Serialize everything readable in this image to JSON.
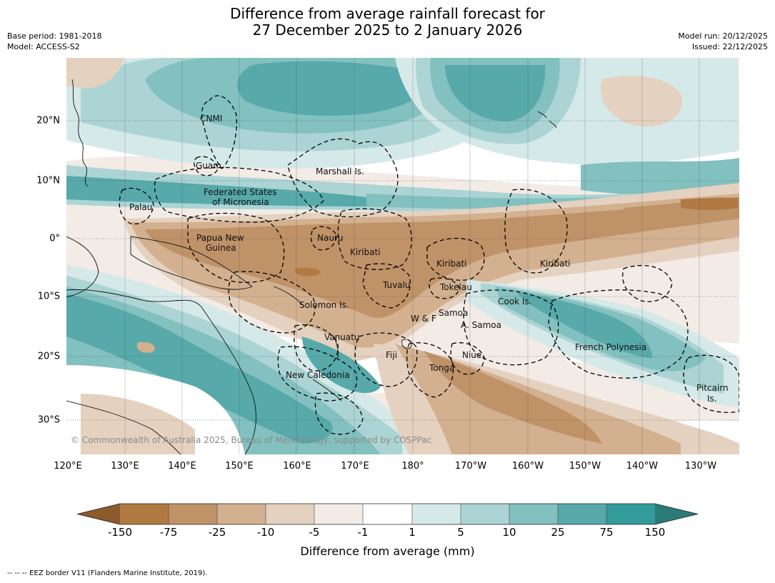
{
  "header": {
    "title_line1": "Difference from average rainfall forecast for",
    "title_line2": "27 December 2025 to 2 January 2026",
    "base_period": "Base period: 1981-2018",
    "model": "Model: ACCESS-S2",
    "model_run": "Model run: 20/12/2025",
    "issued": "Issued: 22/12/2025"
  },
  "axes": {
    "lat_labels": [
      "20°N",
      "10°N",
      "0°",
      "10°S",
      "20°S",
      "30°S"
    ],
    "lon_labels": [
      "120°E",
      "130°E",
      "140°E",
      "150°E",
      "160°E",
      "170°E",
      "180°",
      "170°W",
      "160°W",
      "150°W",
      "140°W",
      "130°W"
    ]
  },
  "places": {
    "cnmi": "CNMI",
    "guam": "Guam",
    "marshall": "Marshall Is.",
    "fsm_1": "Federated States",
    "fsm_2": "of Micronesia",
    "palau": "Palau",
    "png_1": "Papua New",
    "png_2": "Guinea",
    "nauru": "Nauru",
    "kiribati_w": "Kiribati",
    "kiribati_c": "Kiribati",
    "kiribati_e": "Kiribati",
    "tuvalu": "Tuvalu",
    "tokelau": "Tokelau",
    "cook": "Cook Is.",
    "solomon": "Solomon Is.",
    "samoa": "Samoa",
    "wf": "W & F",
    "asamoa": "A. Samoa",
    "vanuatu": "Vanuatu",
    "fiji": "Fiji",
    "niue": "Niue",
    "tonga": "Tonga",
    "fp": "French Polynesia",
    "newcal": "New Caledonia",
    "pitcairn_1": "Pitcairn",
    "pitcairn_2": "Is."
  },
  "copyright": "© Commonwealth of Australia 2025, Bureau of Meteorology, supported by COSPPac",
  "colorbar": {
    "title": "Difference from average (mm)",
    "ticks": [
      "-150",
      "-75",
      "-25",
      "-10",
      "-5",
      "-1",
      "1",
      "5",
      "10",
      "25",
      "75",
      "150"
    ],
    "colors": {
      "below_min": "#8c5a2b",
      "b_150_75": "#b07a42",
      "b_75_25": "#c09268",
      "b_25_10": "#d3b08f",
      "b_10_5": "#e5d1c0",
      "b_5_1": "#f3ebe5",
      "b_1_1": "#ffffff",
      "g_1_5": "#d5e9e8",
      "g_5_10": "#acd4d4",
      "g_10_25": "#83c0c0",
      "g_25_75": "#57a9aa",
      "g_75_150": "#339b9a",
      "above_max": "#2a7a78"
    }
  },
  "footer": "--  --  -- EEZ border V11 (Flanders Marine Institute, 2019)."
}
